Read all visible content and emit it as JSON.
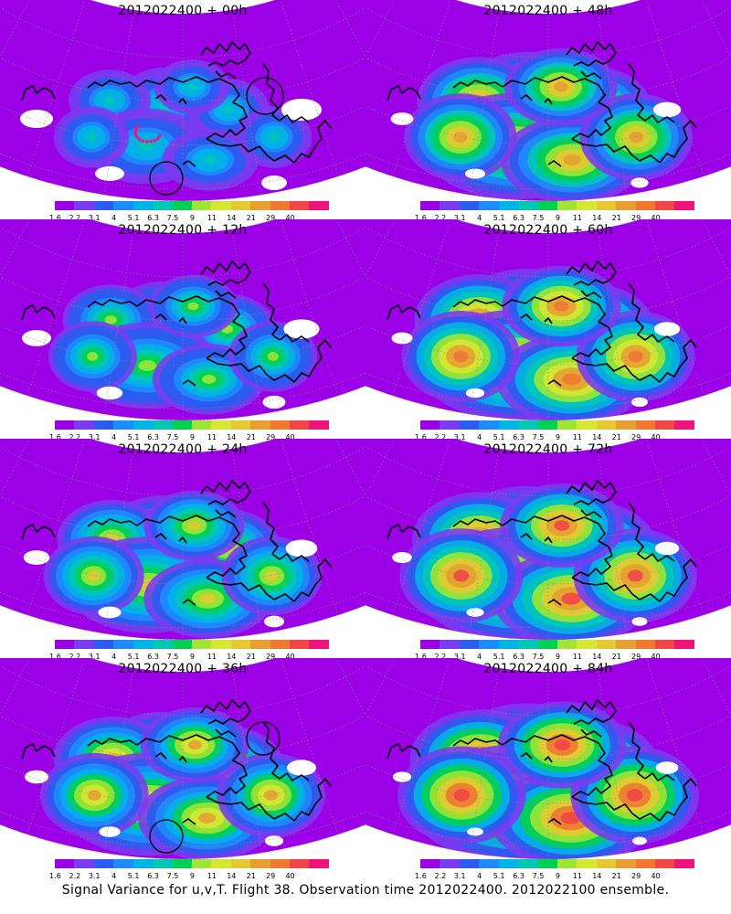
{
  "caption": "Signal Variance for u,v,T. Flight 38. Observation time 2012022400. 2012022100 ensemble.",
  "colorbar": {
    "colors": [
      "#9b00e6",
      "#7a3cf0",
      "#2a5cf0",
      "#1e8cff",
      "#00b4e6",
      "#00c8b4",
      "#00d250",
      "#9ee632",
      "#d7e632",
      "#e6c832",
      "#e6a032",
      "#f07832",
      "#f04646",
      "#f0147a"
    ],
    "labels": [
      "1.6",
      "2.2",
      "3.1",
      "4",
      "5.1",
      "6.3",
      "7.5",
      "9",
      "11",
      "14",
      "21",
      "29",
      "40"
    ]
  },
  "panels": [
    {
      "title": "2012022400 + 00h",
      "level": 0.0,
      "circles": [
        "pacific-ring",
        "labrador-ring"
      ]
    },
    {
      "title": "2012022400 + 12h",
      "level": 0.22,
      "circles": []
    },
    {
      "title": "2012022400 + 24h",
      "level": 0.42,
      "circles": []
    },
    {
      "title": "2012022400 + 36h",
      "level": 0.55,
      "circles": [
        "pacific-ring",
        "hudson-ring"
      ]
    },
    {
      "title": "2012022400 + 48h",
      "level": 0.62,
      "circles": []
    },
    {
      "title": "2012022400 + 60h",
      "level": 0.72,
      "circles": []
    },
    {
      "title": "2012022400 + 72h",
      "level": 0.8,
      "circles": []
    },
    {
      "title": "2012022400 + 84h",
      "level": 0.88,
      "circles": []
    }
  ]
}
